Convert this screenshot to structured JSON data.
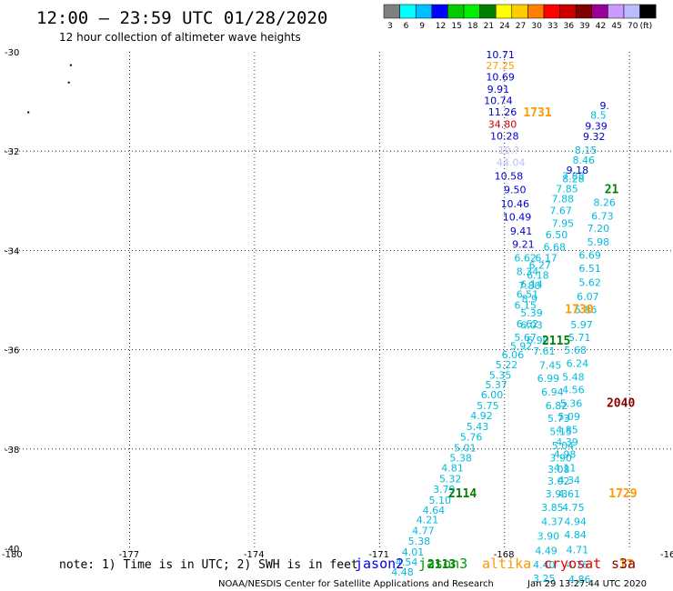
{
  "header": {
    "title": "12:00 – 23:59 UTC 01/28/2020",
    "subtitle": "12 hour collection of altimeter wave heights"
  },
  "legend": {
    "colors": [
      "#808080",
      "#00ffff",
      "#00bfff",
      "#0000ff",
      "#00cc00",
      "#00ee00",
      "#008000",
      "#ffff00",
      "#ffcc00",
      "#ff8000",
      "#ff0000",
      "#cc0000",
      "#800000",
      "#990099",
      "#cc99ff",
      "#bbbbff",
      "#000000"
    ],
    "labels": [
      "3",
      "6",
      "9",
      "12",
      "15",
      "18",
      "21",
      "24",
      "27",
      "30",
      "33",
      "36",
      "39",
      "42",
      "45",
      "70",
      "(ft)"
    ]
  },
  "chart_data": {
    "type": "scatter",
    "title": "12:00 – 23:59 UTC 01/28/2020",
    "xlim": [
      -180,
      -164
    ],
    "ylim": [
      -40,
      -30
    ],
    "x_ticks": [
      "-180",
      "-177",
      "-174",
      "-171",
      "-168",
      "-16"
    ],
    "y_ticks": [
      "-30",
      "-32",
      "-34",
      "-36",
      "-38",
      "-40"
    ],
    "grid": true,
    "points": [
      {
        "x": -168.1,
        "y": -30.13,
        "v": "10.71",
        "c": "#0000cc"
      },
      {
        "x": -168.1,
        "y": -30.35,
        "v": "27.25",
        "c": "#ff9900"
      },
      {
        "x": -168.1,
        "y": -30.58,
        "v": "10.69",
        "c": "#0000cc"
      },
      {
        "x": -168.15,
        "y": -30.82,
        "v": "9.91",
        "c": "#0000cc"
      },
      {
        "x": -168.15,
        "y": -31.05,
        "v": "10.74",
        "c": "#0000cc"
      },
      {
        "x": -168.05,
        "y": -31.28,
        "v": "11.26",
        "c": "#0000cc"
      },
      {
        "x": -168.05,
        "y": -31.53,
        "v": "34.80",
        "c": "#cc0000"
      },
      {
        "x": -168.0,
        "y": -31.77,
        "v": "10.28",
        "c": "#0000cc"
      },
      {
        "x": -167.9,
        "y": -32.05,
        "v": "10.?",
        "c": "#bbbbff"
      },
      {
        "x": -167.85,
        "y": -32.3,
        "v": "44.04",
        "c": "#bbbbff"
      },
      {
        "x": -167.9,
        "y": -32.57,
        "v": "10.58",
        "c": "#0000cc"
      },
      {
        "x": -167.75,
        "y": -32.85,
        "v": "9.50",
        "c": "#0000cc"
      },
      {
        "x": -167.75,
        "y": -33.13,
        "v": "10.46",
        "c": "#0000cc"
      },
      {
        "x": -167.7,
        "y": -33.4,
        "v": "10.49",
        "c": "#0000cc"
      },
      {
        "x": -167.6,
        "y": -33.68,
        "v": "9.41",
        "c": "#0000cc"
      },
      {
        "x": -167.55,
        "y": -33.95,
        "v": "9.21",
        "c": "#0000cc"
      },
      {
        "x": -167.5,
        "y": -34.22,
        "v": "6.62",
        "c": "#00bbdd"
      },
      {
        "x": -167.45,
        "y": -34.5,
        "v": "8.34",
        "c": "#00bbdd"
      },
      {
        "x": -167.4,
        "y": -34.78,
        "v": "7.80",
        "c": "#00bbdd"
      },
      {
        "x": -167.4,
        "y": -35.05,
        "v": "8.9",
        "c": "#00bbdd"
      },
      {
        "x": -167.35,
        "y": -35.33,
        "v": "5.39",
        "c": "#00bbdd"
      },
      {
        "x": -167.35,
        "y": -35.58,
        "v": "6.03",
        "c": "#00bbdd"
      },
      {
        "x": -167.5,
        "y": -35.82,
        "v": "5.67",
        "c": "#00bbdd"
      },
      {
        "x": -167.6,
        "y": -36.0,
        "v": "5.92",
        "c": "#00bbdd"
      },
      {
        "x": -167.8,
        "y": -36.17,
        "v": "6.06",
        "c": "#00bbdd"
      },
      {
        "x": -167.95,
        "y": -36.37,
        "v": "5.22",
        "c": "#00bbdd"
      },
      {
        "x": -168.1,
        "y": -36.58,
        "v": "5.35",
        "c": "#00bbdd"
      },
      {
        "x": -168.2,
        "y": -36.78,
        "v": "5.37",
        "c": "#00bbdd"
      },
      {
        "x": -168.3,
        "y": -36.98,
        "v": "6.00",
        "c": "#00bbdd"
      },
      {
        "x": -168.4,
        "y": -37.2,
        "v": "5.75",
        "c": "#00bbdd"
      },
      {
        "x": -168.55,
        "y": -37.4,
        "v": "4.92",
        "c": "#00bbdd"
      },
      {
        "x": -168.65,
        "y": -37.62,
        "v": "5.43",
        "c": "#00bbdd"
      },
      {
        "x": -168.8,
        "y": -37.83,
        "v": "5.76",
        "c": "#00bbdd"
      },
      {
        "x": -168.95,
        "y": -38.05,
        "v": "5.01",
        "c": "#00bbdd"
      },
      {
        "x": -169.05,
        "y": -38.25,
        "v": "5.38",
        "c": "#00bbdd"
      },
      {
        "x": -169.25,
        "y": -38.45,
        "v": "4.81",
        "c": "#00bbdd"
      },
      {
        "x": -169.3,
        "y": -38.67,
        "v": "5.32",
        "c": "#00bbdd"
      },
      {
        "x": -169.45,
        "y": -38.88,
        "v": "3.79",
        "c": "#00bbdd"
      },
      {
        "x": -169.55,
        "y": -39.1,
        "v": "5.10",
        "c": "#00bbdd"
      },
      {
        "x": -169.7,
        "y": -39.3,
        "v": "4.64",
        "c": "#00bbdd"
      },
      {
        "x": -169.85,
        "y": -39.5,
        "v": "4.21",
        "c": "#00bbdd"
      },
      {
        "x": -169.95,
        "y": -39.72,
        "v": "4.77",
        "c": "#00bbdd"
      },
      {
        "x": -170.05,
        "y": -39.93,
        "v": "5.38",
        "c": "#00bbdd"
      },
      {
        "x": -170.2,
        "y": -40.15,
        "v": "4.01",
        "c": "#00bbdd"
      },
      {
        "x": -170.35,
        "y": -40.35,
        "v": "4.54",
        "c": "#00bbdd"
      },
      {
        "x": -170.45,
        "y": -40.55,
        "v": "4.48",
        "c": "#00bbdd"
      },
      {
        "x": -167.15,
        "y": -34.37,
        "v": "6.27",
        "c": "#00bbdd"
      },
      {
        "x": -167.2,
        "y": -34.57,
        "v": "6.18",
        "c": "#00bbdd"
      },
      {
        "x": -167.35,
        "y": -34.75,
        "v": "6.14",
        "c": "#00bbdd"
      },
      {
        "x": -167.45,
        "y": -34.95,
        "v": "6.51",
        "c": "#00bbdd"
      },
      {
        "x": -167.5,
        "y": -35.17,
        "v": "6.15",
        "c": "#00bbdd"
      },
      {
        "x": -167.45,
        "y": -35.55,
        "v": "6.62",
        "c": "#00bbdd"
      },
      {
        "x": -167.2,
        "y": -35.88,
        "v": "6.90",
        "c": "#00bbdd"
      },
      {
        "x": -167.05,
        "y": -36.1,
        "v": "7.61",
        "c": "#00bbdd"
      },
      {
        "x": -166.9,
        "y": -36.38,
        "v": "7.45",
        "c": "#00bbdd"
      },
      {
        "x": -166.95,
        "y": -36.65,
        "v": "6.99",
        "c": "#00bbdd"
      },
      {
        "x": -166.85,
        "y": -36.92,
        "v": "6.94",
        "c": "#00bbdd"
      },
      {
        "x": -166.75,
        "y": -37.2,
        "v": "6.82",
        "c": "#00bbdd"
      },
      {
        "x": -166.7,
        "y": -37.45,
        "v": "5.73",
        "c": "#00bbdd"
      },
      {
        "x": -166.65,
        "y": -37.72,
        "v": "5.15",
        "c": "#00bbdd"
      },
      {
        "x": -166.6,
        "y": -38.0,
        "v": "5.04",
        "c": "#00bbdd"
      },
      {
        "x": -166.65,
        "y": -38.25,
        "v": "3.90",
        "c": "#00bbdd"
      },
      {
        "x": -166.7,
        "y": -38.48,
        "v": "3.08",
        "c": "#00bbdd"
      },
      {
        "x": -166.7,
        "y": -38.72,
        "v": "3.02",
        "c": "#00bbdd"
      },
      {
        "x": -166.75,
        "y": -38.97,
        "v": "3.93",
        "c": "#00bbdd"
      },
      {
        "x": -166.85,
        "y": -39.25,
        "v": "3.85",
        "c": "#00bbdd"
      },
      {
        "x": -166.85,
        "y": -39.53,
        "v": "4.37",
        "c": "#00bbdd"
      },
      {
        "x": -166.95,
        "y": -39.83,
        "v": "3.90",
        "c": "#00bbdd"
      },
      {
        "x": -167.0,
        "y": -40.12,
        "v": "4.49",
        "c": "#00bbdd"
      },
      {
        "x": -167.05,
        "y": -40.4,
        "v": "4.40",
        "c": "#00bbdd"
      },
      {
        "x": -167.05,
        "y": -40.68,
        "v": "3.25",
        "c": "#00bbdd"
      },
      {
        "x": -166.65,
        "y": -33.27,
        "v": "7.67",
        "c": "#00bbdd"
      },
      {
        "x": -166.6,
        "y": -33.53,
        "v": "7.95",
        "c": "#00bbdd"
      },
      {
        "x": -166.75,
        "y": -33.75,
        "v": "6.50",
        "c": "#00bbdd"
      },
      {
        "x": -166.8,
        "y": -34.0,
        "v": "6.68",
        "c": "#00bbdd"
      },
      {
        "x": -167.0,
        "y": -34.22,
        "v": "6.17",
        "c": "#00bbdd"
      },
      {
        "x": -166.35,
        "y": -32.57,
        "v": "7.88",
        "c": "#00bbdd"
      },
      {
        "x": -166.5,
        "y": -32.83,
        "v": "7.85",
        "c": "#00bbdd"
      },
      {
        "x": -166.6,
        "y": -33.03,
        "v": "7.88",
        "c": "#00bbdd"
      },
      {
        "x": -166.05,
        "y": -32.05,
        "v": "8.15",
        "c": "#00bbdd"
      },
      {
        "x": -166.1,
        "y": -32.25,
        "v": "8.46",
        "c": "#00bbdd"
      },
      {
        "x": -166.25,
        "y": -32.45,
        "v": "9.18",
        "c": "#0000cc"
      },
      {
        "x": -166.35,
        "y": -32.63,
        "v": "8.28",
        "c": "#00bbdd"
      },
      {
        "x": -165.75,
        "y": -31.35,
        "v": "8.5",
        "c": "#00bbdd"
      },
      {
        "x": -165.8,
        "y": -31.57,
        "v": "9.39",
        "c": "#0000cc"
      },
      {
        "x": -165.85,
        "y": -31.78,
        "v": "9.32",
        "c": "#0000cc"
      },
      {
        "x": -165.6,
        "y": -31.15,
        "v": "9.",
        "c": "#0000cc"
      },
      {
        "x": -165.6,
        "y": -33.1,
        "v": "8.26",
        "c": "#00bbdd"
      },
      {
        "x": -165.65,
        "y": -33.38,
        "v": "6.73",
        "c": "#00bbdd"
      },
      {
        "x": -165.75,
        "y": -33.63,
        "v": "7.20",
        "c": "#00bbdd"
      },
      {
        "x": -165.75,
        "y": -33.9,
        "v": "5.98",
        "c": "#00bbdd"
      },
      {
        "x": -165.95,
        "y": -34.17,
        "v": "6.69",
        "c": "#00bbdd"
      },
      {
        "x": -165.95,
        "y": -34.43,
        "v": "6.51",
        "c": "#00bbdd"
      },
      {
        "x": -165.95,
        "y": -34.72,
        "v": "5.62",
        "c": "#00bbdd"
      },
      {
        "x": -166.0,
        "y": -35.0,
        "v": "6.07",
        "c": "#00bbdd"
      },
      {
        "x": -166.05,
        "y": -35.27,
        "v": "5.86",
        "c": "#00bbdd"
      },
      {
        "x": -166.15,
        "y": -35.57,
        "v": "5.97",
        "c": "#00bbdd"
      },
      {
        "x": -166.2,
        "y": -35.82,
        "v": "5.71",
        "c": "#00bbdd"
      },
      {
        "x": -166.3,
        "y": -36.08,
        "v": "5.68",
        "c": "#00bbdd"
      },
      {
        "x": -166.25,
        "y": -36.35,
        "v": "6.24",
        "c": "#00bbdd"
      },
      {
        "x": -166.35,
        "y": -36.62,
        "v": "5.48",
        "c": "#00bbdd"
      },
      {
        "x": -166.35,
        "y": -36.88,
        "v": "4.56",
        "c": "#00bbdd"
      },
      {
        "x": -166.4,
        "y": -37.15,
        "v": "5.36",
        "c": "#00bbdd"
      },
      {
        "x": -166.45,
        "y": -37.42,
        "v": "5.09",
        "c": "#00bbdd"
      },
      {
        "x": -166.5,
        "y": -37.68,
        "v": "4.85",
        "c": "#00bbdd"
      },
      {
        "x": -166.5,
        "y": -37.93,
        "v": "4.39",
        "c": "#00bbdd"
      },
      {
        "x": -166.55,
        "y": -38.18,
        "v": "4.98",
        "c": "#00bbdd"
      },
      {
        "x": -166.55,
        "y": -38.45,
        "v": "4.11",
        "c": "#00bbdd"
      },
      {
        "x": -166.45,
        "y": -38.7,
        "v": "4.34",
        "c": "#00bbdd"
      },
      {
        "x": -166.45,
        "y": -38.97,
        "v": "4.61",
        "c": "#00bbdd"
      },
      {
        "x": -166.35,
        "y": -39.25,
        "v": "4.75",
        "c": "#00bbdd"
      },
      {
        "x": -166.3,
        "y": -39.53,
        "v": "4.94",
        "c": "#00bbdd"
      },
      {
        "x": -166.3,
        "y": -39.8,
        "v": "4.84",
        "c": "#00bbdd"
      },
      {
        "x": -166.25,
        "y": -40.1,
        "v": "4.71",
        "c": "#00bbdd"
      },
      {
        "x": -166.25,
        "y": -40.4,
        "v": "4.76",
        "c": "#00bbdd"
      },
      {
        "x": -166.2,
        "y": -40.7,
        "v": "4.86",
        "c": "#00bbdd"
      }
    ],
    "pass_labels": [
      {
        "x": -167.55,
        "y": -31.3,
        "t": "1731",
        "c": "#ff9900"
      },
      {
        "x": -166.55,
        "y": -35.27,
        "t": "1730",
        "c": "#ff9900"
      },
      {
        "x": -167.1,
        "y": -35.9,
        "t": "2115",
        "c": "#008000"
      },
      {
        "x": -165.55,
        "y": -37.15,
        "t": "2040",
        "c": "#880000"
      },
      {
        "x": -169.35,
        "y": -38.97,
        "t": "2114",
        "c": "#008000"
      },
      {
        "x": -165.5,
        "y": -38.97,
        "t": "1729",
        "c": "#ff9900"
      },
      {
        "x": -169.85,
        "y": -40.4,
        "t": "2113",
        "c": "#008000"
      },
      {
        "x": -165.6,
        "y": -32.85,
        "t": "21",
        "c": "#008000"
      },
      {
        "x": -165.25,
        "y": -40.4,
        "t": "17",
        "c": "#ff9900"
      }
    ],
    "dots": [
      {
        "x": -178.43,
        "y": -30.25
      },
      {
        "x": -178.48,
        "y": -30.6
      },
      {
        "x": -179.45,
        "y": -31.2
      }
    ]
  },
  "notes": {
    "note_text": "note: 1) Time is in UTC; 2) SWH is in feet",
    "satellites": [
      {
        "name": "jason2",
        "color": "#0000ee"
      },
      {
        "name": "jason3",
        "color": "#009900"
      },
      {
        "name": "altika",
        "color": "#ff9900"
      },
      {
        "name": "cryosat",
        "color": "#ee0000"
      },
      {
        "name": "s3a",
        "color": "#880000"
      }
    ],
    "footer_left": "NOAA/NESDIS Center for Satellite Applications and Research",
    "footer_right": "Jan 29 13:27:44 UTC 2020"
  }
}
